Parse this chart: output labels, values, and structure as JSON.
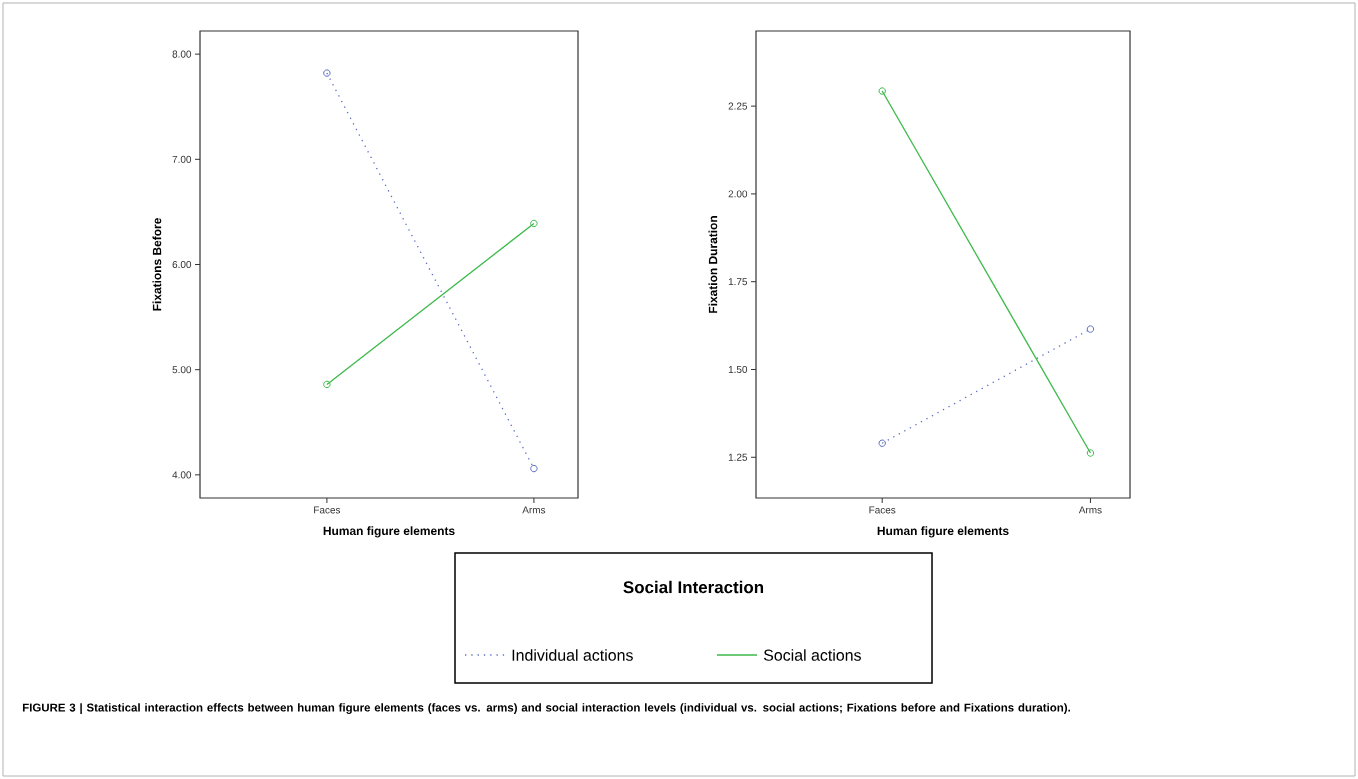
{
  "chart_data": [
    {
      "type": "line",
      "xlabel": "Human figure elements",
      "ylabel": "Fixations Before",
      "categories": [
        "Faces",
        "Arms"
      ],
      "series": [
        {
          "name": "Individual actions",
          "color": "#5a6ec4",
          "values": [
            7.82,
            4.06
          ],
          "line_style": "dotted"
        },
        {
          "name": "Social actions",
          "color": "#3cba4a",
          "values": [
            4.86,
            6.39
          ],
          "line_style": "solid"
        }
      ],
      "ylim": [
        3.78,
        8.22
      ],
      "yticks": [
        {
          "value": 4,
          "label": "4.00"
        },
        {
          "value": 5,
          "label": "5.00"
        },
        {
          "value": 6,
          "label": "6.00"
        },
        {
          "value": 7,
          "label": "7.00"
        },
        {
          "value": 8,
          "label": "8.00"
        }
      ],
      "marker": "circle",
      "grid": false,
      "legend": "bottom",
      "legend_title": "Social Interaction",
      "annotations": [
        "FIGURE 3 | Statistical interaction effects between human figure elements (faces vs. arms) and social interaction levels (individual vs. social actions; Fixations before and Fixations duration)."
      ]
    },
    {
      "type": "line",
      "xlabel": "Human figure elements",
      "ylabel": "Fixation Duration",
      "categories": [
        "Faces",
        "Arms"
      ],
      "series": [
        {
          "color": "#5a6ec4",
          "values": [
            1.29,
            1.615
          ],
          "line_style": "dotted"
        },
        {
          "color": "#3cba4a",
          "values": [
            2.293,
            1.262
          ],
          "line_style": "solid"
        }
      ],
      "ylim": [
        1.134,
        2.464
      ],
      "yticks": [
        {
          "value": 1.25,
          "label": "1.25"
        },
        {
          "value": 1.5,
          "label": "1.50"
        },
        {
          "value": 1.75,
          "label": "1.75"
        },
        {
          "value": 2,
          "label": "2.00"
        },
        {
          "value": 2.25,
          "label": "2.25"
        }
      ],
      "marker": "circle",
      "grid": false
    }
  ]
}
